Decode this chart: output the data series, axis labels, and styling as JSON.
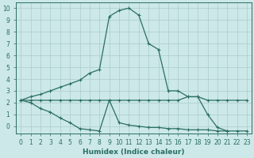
{
  "xlabel": "Humidex (Indice chaleur)",
  "background_color": "#cce8e8",
  "grid_color": "#aacccc",
  "line_color": "#2a6e64",
  "xlim": [
    -0.5,
    23.5
  ],
  "ylim": [
    -0.6,
    10.5
  ],
  "xticks": [
    0,
    1,
    2,
    3,
    4,
    5,
    6,
    7,
    8,
    9,
    10,
    11,
    12,
    13,
    14,
    15,
    16,
    17,
    18,
    19,
    20,
    21,
    22,
    23
  ],
  "yticks": [
    0,
    1,
    2,
    3,
    4,
    5,
    6,
    7,
    8,
    9,
    10
  ],
  "series": [
    {
      "x": [
        0,
        1,
        2,
        3,
        4,
        5,
        6,
        7,
        8,
        9,
        10,
        11,
        12,
        13,
        14,
        15,
        16,
        17,
        18,
        19,
        20,
        21,
        22,
        23
      ],
      "y": [
        2.2,
        2.5,
        2.7,
        3.0,
        3.3,
        3.6,
        3.9,
        4.5,
        4.8,
        9.3,
        9.8,
        10.0,
        9.4,
        7.0,
        6.5,
        3.0,
        3.0,
        2.5,
        2.5,
        1.0,
        -0.1,
        -0.4,
        null,
        null
      ]
    },
    {
      "x": [
        0,
        1,
        2,
        3,
        4,
        5,
        6,
        7,
        8,
        9,
        10,
        11,
        12,
        13,
        14,
        15,
        16,
        17,
        18,
        19,
        20,
        21,
        22,
        23
      ],
      "y": [
        2.2,
        2.2,
        2.2,
        2.2,
        2.2,
        2.2,
        2.2,
        2.2,
        2.2,
        2.2,
        2.2,
        2.2,
        2.2,
        2.2,
        2.2,
        2.2,
        2.2,
        2.5,
        2.5,
        2.2,
        2.2,
        2.2,
        2.2,
        2.2
      ]
    },
    {
      "x": [
        0,
        1,
        2,
        3,
        4,
        5,
        6,
        7,
        8,
        9,
        10,
        11,
        12,
        13,
        14,
        15,
        16,
        17,
        18,
        19,
        20,
        21,
        22,
        23
      ],
      "y": [
        2.2,
        2.0,
        1.5,
        1.2,
        0.7,
        0.3,
        -0.2,
        -0.3,
        -0.4,
        2.2,
        0.3,
        0.1,
        0.0,
        -0.1,
        -0.1,
        -0.2,
        -0.2,
        -0.3,
        -0.3,
        -0.3,
        -0.4,
        -0.4,
        -0.4,
        -0.4
      ]
    }
  ]
}
